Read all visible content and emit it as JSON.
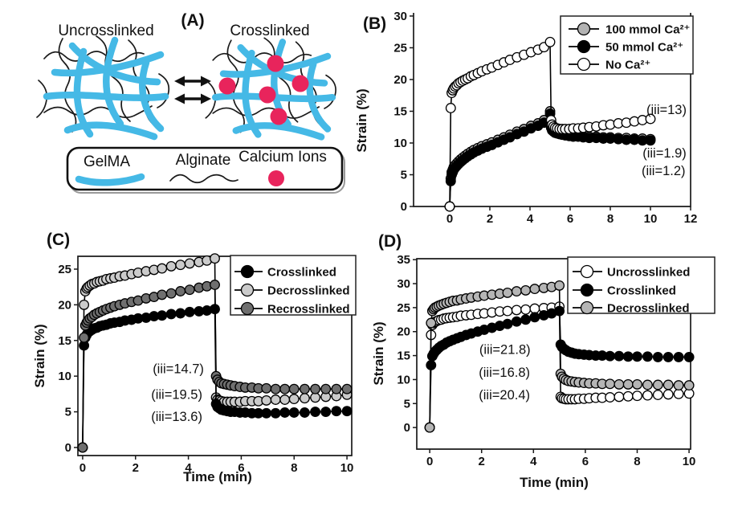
{
  "panel_a": {
    "label": "(A)",
    "uncrosslinked_title": "Uncrosslinked",
    "crosslinked_title": "Crosslinked",
    "legend_items": [
      {
        "name": "GelMA",
        "color": "#45b9e6"
      },
      {
        "name": "Alginate",
        "color": "#1a1a1a"
      },
      {
        "name": "Calcium Ions",
        "color": "#e8245c"
      }
    ]
  },
  "chart_data": [
    {
      "panel_id": "B",
      "panel_label": "(B)",
      "type": "line",
      "title": "",
      "xlabel": "",
      "ylabel": "Strain (%)",
      "xlim": [
        -1.8,
        12
      ],
      "ylim": [
        0,
        30.5
      ],
      "xticks": [
        0,
        2,
        4,
        6,
        8,
        10,
        12
      ],
      "yticks": [
        0,
        5,
        10,
        15,
        20,
        25,
        30
      ],
      "grid": false,
      "legend_position": "top-right",
      "x": [
        0,
        0.05,
        0.1,
        0.15,
        0.2,
        0.27,
        0.35,
        0.44,
        0.54,
        0.65,
        0.77,
        0.9,
        1.05,
        1.2,
        1.4,
        1.6,
        1.85,
        2.1,
        2.4,
        2.7,
        3.0,
        3.35,
        3.7,
        4.05,
        4.4,
        4.7,
        5.0,
        5.05,
        5.1,
        5.17,
        5.25,
        5.35,
        5.47,
        5.6,
        5.75,
        5.95,
        6.15,
        6.4,
        6.65,
        6.95,
        7.3,
        7.65,
        8.0,
        8.4,
        8.8,
        9.2,
        9.6,
        10.0
      ],
      "series": [
        {
          "name": "100 mmol Ca²⁺",
          "marker_fill": "#b3b3b3",
          "line_color": "#000000",
          "y": [
            0,
            4.4,
            5.4,
            5.8,
            6.2,
            6.5,
            6.8,
            7.1,
            7.4,
            7.7,
            8.0,
            8.3,
            8.6,
            8.9,
            9.2,
            9.5,
            9.8,
            10.1,
            10.5,
            10.9,
            11.3,
            11.8,
            12.2,
            12.7,
            13.1,
            13.6,
            15.0,
            12.7,
            12.3,
            12.0,
            11.8,
            11.7,
            11.6,
            11.5,
            11.4,
            11.3,
            11.2,
            11.2,
            11.1,
            11.0,
            11.0,
            10.9,
            10.9,
            10.8,
            10.8,
            10.7,
            10.7,
            10.6
          ]
        },
        {
          "name": "50 mmol Ca²⁺",
          "marker_fill": "#000000",
          "line_color": "#000000",
          "y": [
            0,
            4.0,
            5.0,
            5.4,
            5.8,
            6.1,
            6.4,
            6.7,
            7.0,
            7.3,
            7.6,
            7.9,
            8.2,
            8.5,
            8.8,
            9.1,
            9.4,
            9.7,
            10.1,
            10.5,
            10.9,
            11.4,
            11.8,
            12.3,
            12.7,
            13.2,
            14.6,
            12.4,
            12.0,
            11.8,
            11.6,
            11.5,
            11.4,
            11.3,
            11.2,
            11.1,
            11.0,
            11.0,
            10.9,
            10.8,
            10.8,
            10.7,
            10.7,
            10.6,
            10.5,
            10.5,
            10.4,
            10.4
          ]
        },
        {
          "name": "No Ca²⁺",
          "marker_fill": "#ffffff",
          "line_color": "#000000",
          "y": [
            0,
            15.5,
            17.9,
            18.3,
            18.6,
            18.9,
            19.1,
            19.4,
            19.6,
            19.8,
            20.0,
            20.2,
            20.5,
            20.7,
            21.0,
            21.3,
            21.6,
            21.9,
            22.3,
            22.7,
            23.1,
            23.5,
            23.9,
            24.3,
            24.7,
            25.1,
            25.9,
            13.6,
            12.9,
            12.6,
            12.4,
            12.3,
            12.2,
            12.2,
            12.2,
            12.2,
            12.3,
            12.3,
            12.4,
            12.5,
            12.6,
            12.8,
            12.9,
            13.1,
            13.2,
            13.4,
            13.6,
            13.8
          ]
        }
      ],
      "legend": [
        {
          "label": "100 mmol Ca²⁺",
          "marker_fill": "#b3b3b3"
        },
        {
          "label": "50 mmol Ca²⁺",
          "marker_fill": "#000000"
        },
        {
          "label": "No Ca²⁺",
          "marker_fill": "#ffffff"
        }
      ],
      "annotations": [
        {
          "text": "(iii=13)",
          "x": 10.8,
          "y": 15.2
        },
        {
          "text": "(iii=1.9)",
          "x": 10.7,
          "y": 8.35
        },
        {
          "text": "(iii=1.2)",
          "x": 10.65,
          "y": 5.55
        }
      ]
    },
    {
      "panel_id": "C",
      "panel_label": "(C)",
      "type": "line",
      "title": "",
      "xlabel": "Time (min)",
      "ylabel": "Strain (%)",
      "xlim": [
        -0.18,
        10.18
      ],
      "ylim": [
        -1.13,
        26.8
      ],
      "xticks": [
        0,
        2,
        4,
        6,
        8,
        10
      ],
      "yticks": [
        0,
        5,
        10,
        15,
        20,
        25
      ],
      "grid": false,
      "legend_position": "top-right",
      "x": [
        0,
        0.05,
        0.1,
        0.15,
        0.2,
        0.27,
        0.35,
        0.44,
        0.54,
        0.65,
        0.77,
        0.9,
        1.05,
        1.2,
        1.4,
        1.6,
        1.85,
        2.1,
        2.4,
        2.7,
        3.0,
        3.35,
        3.7,
        4.05,
        4.4,
        4.7,
        5.0,
        5.05,
        5.1,
        5.17,
        5.25,
        5.35,
        5.47,
        5.6,
        5.75,
        5.95,
        6.15,
        6.4,
        6.65,
        6.95,
        7.3,
        7.65,
        8.0,
        8.4,
        8.8,
        9.2,
        9.6,
        10.0
      ],
      "series": [
        {
          "name": "Decrosslinked",
          "marker_fill": "#cbcbcb",
          "line_color": "#000000",
          "y": [
            0,
            20.0,
            21.9,
            22.3,
            22.5,
            22.7,
            22.9,
            23.0,
            23.2,
            23.3,
            23.4,
            23.6,
            23.7,
            23.8,
            24.0,
            24.1,
            24.3,
            24.5,
            24.7,
            24.9,
            25.1,
            25.4,
            25.6,
            25.8,
            26.0,
            26.2,
            26.5,
            7.0,
            6.7,
            6.6,
            6.5,
            6.4,
            6.4,
            6.4,
            6.4,
            6.4,
            6.5,
            6.5,
            6.5,
            6.6,
            6.7,
            6.7,
            6.8,
            6.9,
            7.0,
            7.1,
            7.2,
            7.4
          ]
        },
        {
          "name": "Crosslinked",
          "marker_fill": "#000000",
          "line_color": "#000000",
          "y": [
            0,
            14.3,
            15.4,
            15.8,
            16.1,
            16.3,
            16.5,
            16.7,
            16.8,
            17.0,
            17.1,
            17.2,
            17.4,
            17.5,
            17.6,
            17.8,
            17.9,
            18.1,
            18.2,
            18.4,
            18.5,
            18.7,
            18.8,
            19.0,
            19.1,
            19.2,
            19.4,
            6.1,
            5.7,
            5.5,
            5.3,
            5.2,
            5.1,
            5.0,
            5.0,
            4.9,
            4.9,
            4.8,
            4.8,
            4.8,
            4.8,
            4.9,
            4.9,
            4.9,
            5.0,
            5.0,
            5.1,
            5.1
          ]
        },
        {
          "name": "Recrosslinked",
          "marker_fill": "#6f6f6f",
          "line_color": "#000000",
          "y": [
            0,
            15.4,
            17.1,
            17.5,
            17.8,
            18.1,
            18.3,
            18.6,
            18.8,
            19.0,
            19.2,
            19.4,
            19.6,
            19.8,
            20.0,
            20.2,
            20.4,
            20.6,
            20.9,
            21.1,
            21.4,
            21.6,
            21.9,
            22.1,
            22.4,
            22.6,
            22.8,
            10.0,
            9.5,
            9.2,
            9.0,
            8.9,
            8.8,
            8.7,
            8.6,
            8.5,
            8.4,
            8.4,
            8.3,
            8.3,
            8.2,
            8.2,
            8.2,
            8.2,
            8.2,
            8.2,
            8.2,
            8.2
          ]
        }
      ],
      "legend": [
        {
          "label": "Crosslinked",
          "marker_fill": "#000000"
        },
        {
          "label": "Decrosslinked",
          "marker_fill": "#cbcbcb"
        },
        {
          "label": "Recrosslinked",
          "marker_fill": "#6f6f6f"
        }
      ],
      "annotations": [
        {
          "text": "(iii=14.7)",
          "x": 3.62,
          "y": 11.0
        },
        {
          "text": "(iii=19.5)",
          "x": 3.56,
          "y": 7.4
        },
        {
          "text": "(iii=13.6)",
          "x": 3.56,
          "y": 4.3
        }
      ]
    },
    {
      "panel_id": "D",
      "panel_label": "(D)",
      "type": "line",
      "title": "",
      "xlabel": "Time (min)",
      "ylabel": "Strain (%)",
      "xlim": [
        -0.5,
        10.06
      ],
      "ylim": [
        -4.5,
        35.2
      ],
      "xticks": [
        0,
        2,
        4,
        6,
        8,
        10
      ],
      "yticks": [
        0,
        5,
        10,
        15,
        20,
        25,
        30,
        35
      ],
      "grid": false,
      "legend_position": "top-right",
      "x": [
        0,
        0.05,
        0.1,
        0.15,
        0.2,
        0.27,
        0.35,
        0.44,
        0.54,
        0.65,
        0.77,
        0.9,
        1.05,
        1.2,
        1.4,
        1.6,
        1.85,
        2.1,
        2.4,
        2.7,
        3.0,
        3.35,
        3.7,
        4.05,
        4.4,
        4.7,
        5.0,
        5.05,
        5.1,
        5.17,
        5.25,
        5.35,
        5.47,
        5.6,
        5.75,
        5.95,
        6.15,
        6.4,
        6.65,
        6.95,
        7.3,
        7.65,
        8.0,
        8.4,
        8.8,
        9.2,
        9.6,
        10.0
      ],
      "series": [
        {
          "name": "Uncrosslinked",
          "marker_fill": "#ffffff",
          "line_color": "#000000",
          "y": [
            0,
            19.3,
            21.4,
            21.8,
            22.0,
            22.2,
            22.4,
            22.5,
            22.7,
            22.8,
            22.9,
            23.0,
            23.1,
            23.3,
            23.4,
            23.5,
            23.7,
            23.8,
            24.0,
            24.2,
            24.3,
            24.5,
            24.6,
            24.8,
            24.9,
            25.0,
            25.2,
            6.4,
            6.1,
            6.0,
            5.9,
            5.9,
            5.9,
            5.9,
            6.0,
            6.0,
            6.1,
            6.2,
            6.2,
            6.3,
            6.4,
            6.5,
            6.6,
            6.7,
            6.8,
            6.9,
            7.0,
            7.1
          ]
        },
        {
          "name": "Crosslinked",
          "marker_fill": "#000000",
          "line_color": "#000000",
          "y": [
            0,
            13.0,
            14.9,
            15.4,
            15.8,
            16.2,
            16.6,
            17.0,
            17.3,
            17.7,
            18.0,
            18.3,
            18.6,
            18.9,
            19.3,
            19.6,
            20.0,
            20.4,
            20.8,
            21.2,
            21.6,
            22.1,
            22.5,
            23.0,
            23.4,
            23.8,
            24.3,
            17.3,
            16.8,
            16.4,
            16.1,
            15.8,
            15.6,
            15.4,
            15.3,
            15.2,
            15.1,
            15.0,
            15.0,
            14.9,
            14.9,
            14.8,
            14.8,
            14.8,
            14.7,
            14.7,
            14.7,
            14.7
          ]
        },
        {
          "name": "Decrosslinked",
          "marker_fill": "#b5b5b5",
          "line_color": "#000000",
          "y": [
            0,
            21.8,
            24.3,
            24.7,
            25.0,
            25.2,
            25.4,
            25.6,
            25.8,
            26.0,
            26.2,
            26.4,
            26.5,
            26.7,
            26.9,
            27.1,
            27.3,
            27.5,
            27.7,
            27.9,
            28.1,
            28.4,
            28.6,
            28.9,
            29.1,
            29.3,
            29.6,
            11.2,
            10.6,
            10.2,
            9.9,
            9.7,
            9.6,
            9.5,
            9.4,
            9.3,
            9.2,
            9.2,
            9.1,
            9.1,
            9.0,
            9.0,
            9.0,
            8.9,
            8.9,
            8.9,
            8.8,
            8.8
          ]
        }
      ],
      "legend": [
        {
          "label": "Uncrosslinked",
          "marker_fill": "#ffffff"
        },
        {
          "label": "Crosslinked",
          "marker_fill": "#000000"
        },
        {
          "label": "Decrosslinked",
          "marker_fill": "#b5b5b5"
        }
      ],
      "annotations": [
        {
          "text": "(iii=21.8)",
          "x": 2.9,
          "y": 16.2
        },
        {
          "text": "(iii=16.8)",
          "x": 2.88,
          "y": 11.4
        },
        {
          "text": "(iii=20.4)",
          "x": 2.88,
          "y": 6.7
        }
      ]
    }
  ]
}
